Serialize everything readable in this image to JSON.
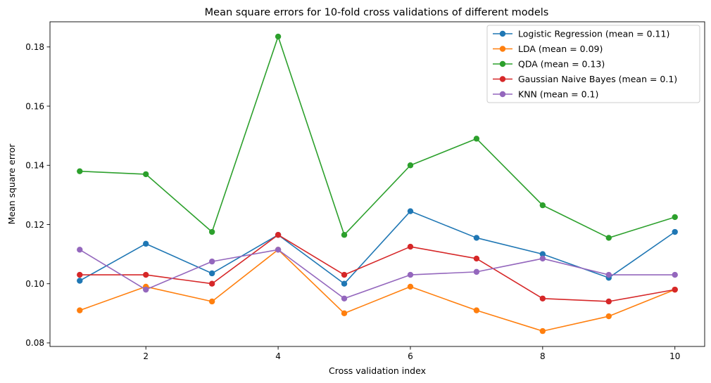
{
  "chart_data": {
    "type": "line",
    "title": "Mean square errors for 10-fold cross validations of different models",
    "xlabel": "Cross validation index",
    "ylabel": "Mean square error",
    "x": [
      1,
      2,
      3,
      4,
      5,
      6,
      7,
      8,
      9,
      10
    ],
    "xlim": [
      0.55,
      10.45
    ],
    "ylim": [
      0.0788,
      0.1885
    ],
    "xticks": [
      2,
      4,
      6,
      8,
      10
    ],
    "xtick_labels": [
      "2",
      "4",
      "6",
      "8",
      "10"
    ],
    "yticks": [
      0.08,
      0.1,
      0.12,
      0.14,
      0.16,
      0.18
    ],
    "ytick_labels": [
      "0.08",
      "0.10",
      "0.12",
      "0.14",
      "0.16",
      "0.18"
    ],
    "grid": false,
    "legend_position": "top-right",
    "series": [
      {
        "name": "Logistic Regression (mean = 0.11)",
        "color": "#1f77b4",
        "values": [
          0.101,
          0.1135,
          0.1035,
          0.1165,
          0.1,
          0.1245,
          0.1155,
          0.11,
          0.102,
          0.1175
        ]
      },
      {
        "name": "LDA (mean = 0.09)",
        "color": "#ff7f0e",
        "values": [
          0.091,
          0.099,
          0.094,
          0.1115,
          0.09,
          0.099,
          0.091,
          0.084,
          0.089,
          0.098
        ]
      },
      {
        "name": "QDA (mean = 0.13)",
        "color": "#2ca02c",
        "values": [
          0.138,
          0.137,
          0.1175,
          0.1835,
          0.1165,
          0.14,
          0.149,
          0.1265,
          0.1155,
          0.1225
        ]
      },
      {
        "name": "Gaussian Naive Bayes (mean = 0.1)",
        "color": "#d62728",
        "values": [
          0.103,
          0.103,
          0.1,
          0.1165,
          0.103,
          0.1125,
          0.1085,
          0.095,
          0.094,
          0.098
        ]
      },
      {
        "name": "KNN (mean = 0.1)",
        "color": "#9467bd",
        "values": [
          0.1115,
          0.098,
          0.1075,
          0.1115,
          0.095,
          0.103,
          0.104,
          0.1085,
          0.103,
          0.103
        ]
      }
    ]
  }
}
